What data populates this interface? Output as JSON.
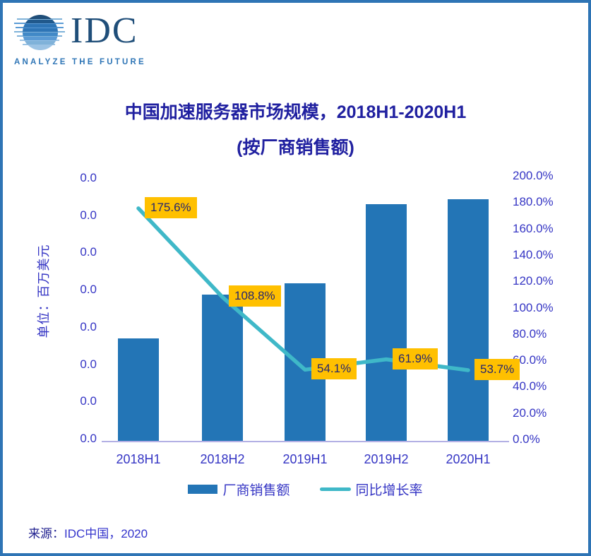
{
  "logo": {
    "name": "IDC",
    "tagline": "ANALYZE THE FUTURE"
  },
  "title": {
    "line1": "中国加速服务器市场规模，2018H1-2020H1",
    "line2": "(按厂商销售额)"
  },
  "axes": {
    "left_title": "单位：百万美元",
    "left_ticks": [
      "0.0",
      "0.0",
      "0.0",
      "0.0",
      "0.0",
      "0.0",
      "0.0",
      "0.0"
    ],
    "right_ticks": [
      "200.0%",
      "180.0%",
      "160.0%",
      "140.0%",
      "120.0%",
      "100.0%",
      "80.0%",
      "60.0%",
      "40.0%",
      "20.0%",
      "0.0%"
    ]
  },
  "chart_data": {
    "type": "bar",
    "subtype": "bar-and-line-combo",
    "title": "中国加速服务器市场规模，2018H1-2020H1 (按厂商销售额)",
    "categories": [
      "2018H1",
      "2018H2",
      "2019H1",
      "2019H2",
      "2020H1"
    ],
    "series": [
      {
        "name": "厂商销售额",
        "type": "bar",
        "axis": "left",
        "note": "left-axis values are masked; every left tick reads 0.0",
        "relative_heights": [
          0.388,
          0.553,
          0.596,
          0.894,
          0.912
        ]
      },
      {
        "name": "同比增长率",
        "type": "line",
        "axis": "right",
        "values": [
          175.6,
          108.8,
          54.1,
          61.9,
          53.7
        ],
        "labels": [
          "175.6%",
          "108.8%",
          "54.1%",
          "61.9%",
          "53.7%"
        ]
      }
    ],
    "left_axis_label": "单位：百万美元",
    "left_axis_tick_text": "0.0",
    "right_axis_range": [
      0,
      200
    ],
    "right_axis_step": 20,
    "grid": false,
    "legend_position": "bottom"
  },
  "legend": [
    {
      "label": "厂商销售额",
      "swatch": "bar"
    },
    {
      "label": "同比增长率",
      "swatch": "line"
    }
  ],
  "source": {
    "prefix": "来源：",
    "text": "IDC中国，2020"
  },
  "colors": {
    "frame": "#2E74B5",
    "title": "#2020A0",
    "axis_text": "#3535C4",
    "bar": "#2375B6",
    "line": "#3FB8C8",
    "point_label_bg": "#FFC000",
    "point_label_text": "#26266E",
    "baseline": "#B3B0E4",
    "source_prefix": "#20208F",
    "source_text": "#3434CC",
    "logo_dark": "#1F4E79",
    "logo_accent": "#2E75B6"
  }
}
